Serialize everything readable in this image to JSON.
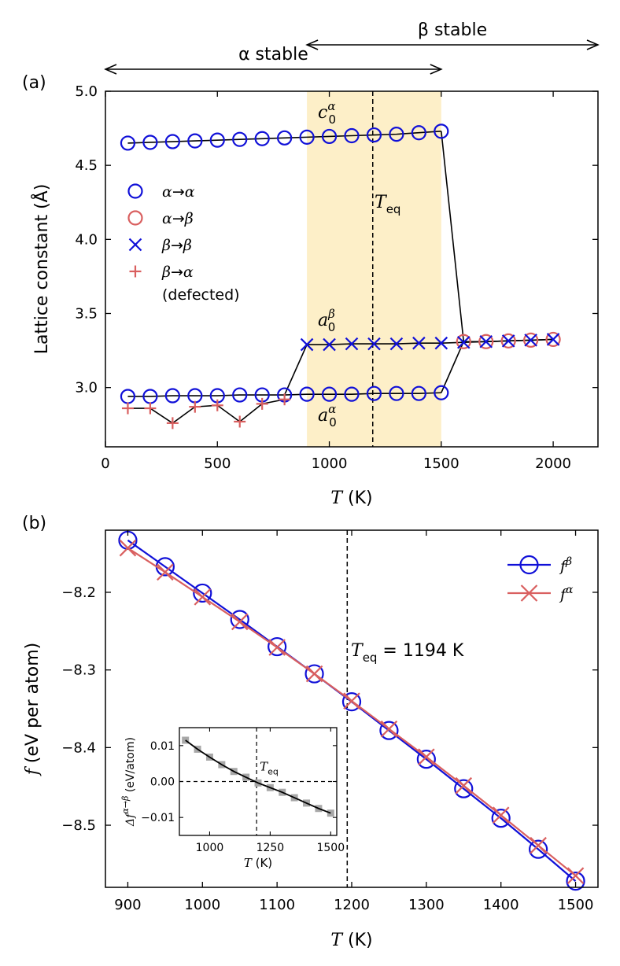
{
  "chart_data": [
    {
      "type": "line",
      "panel": "(a)",
      "xlabel_var": "T",
      "xlabel_unit": " (K)",
      "ylabel": "Lattice constant (Å)",
      "xlim": [
        0,
        2200
      ],
      "ylim": [
        2.6,
        5.0
      ],
      "xticks": [
        0,
        500,
        1000,
        1500,
        2000
      ],
      "yticks": [
        3.0,
        3.5,
        4.0,
        4.5,
        5.0
      ],
      "xtick_labels": [
        "0",
        "500",
        "1000",
        "1500",
        "2000"
      ],
      "ytick_labels": [
        "3.0",
        "3.5",
        "4.0",
        "4.5",
        "5.0"
      ],
      "stable_region": [
        900,
        1500
      ],
      "T_eq": 1194,
      "region_labels": {
        "alpha": "α stable",
        "beta": "β stable",
        "alpha_range": [
          0,
          1500
        ],
        "beta_range": [
          900,
          2200
        ]
      },
      "annotations": {
        "c0_alpha": {
          "base": "c",
          "sub": "0",
          "sup": "α"
        },
        "a0_beta": {
          "base": "a",
          "sub": "0",
          "sup": "β"
        },
        "a0_alpha": {
          "base": "a",
          "sub": "0",
          "sup": "α"
        },
        "teq": {
          "base": "T",
          "sub": "eq"
        }
      },
      "legend": [
        {
          "label": "α→α",
          "marker": "circle",
          "color": "#1010d8"
        },
        {
          "label": "α→β",
          "marker": "circle",
          "color": "#d95f5f"
        },
        {
          "label": "β→β",
          "marker": "x",
          "color": "#1010d8"
        },
        {
          "label": "β→α",
          "marker": "plus",
          "color": "#d95f5f"
        },
        {
          "label": "(defected)",
          "marker": "none",
          "color": "#000000"
        }
      ],
      "series": [
        {
          "name": "c axis α→α",
          "marker": "circle",
          "color": "#1010d8",
          "x": [
            100,
            200,
            300,
            400,
            500,
            600,
            700,
            800,
            900,
            1000,
            1100,
            1200,
            1300,
            1400,
            1500
          ],
          "y": [
            4.65,
            4.655,
            4.66,
            4.665,
            4.67,
            4.675,
            4.68,
            4.685,
            4.69,
            4.695,
            4.7,
            4.705,
            4.71,
            4.72,
            4.73
          ]
        },
        {
          "name": "a axis α→α",
          "marker": "circle",
          "color": "#1010d8",
          "x": [
            100,
            200,
            300,
            400,
            500,
            600,
            700,
            800,
            900,
            1000,
            1100,
            1200,
            1300,
            1400,
            1500
          ],
          "y": [
            2.94,
            2.94,
            2.945,
            2.945,
            2.945,
            2.95,
            2.95,
            2.95,
            2.955,
            2.955,
            2.955,
            2.96,
            2.96,
            2.96,
            2.965
          ]
        },
        {
          "name": "α→β",
          "marker": "circle",
          "color": "#d95f5f",
          "x": [
            1600,
            1700,
            1800,
            1900,
            2000
          ],
          "y": [
            3.31,
            3.31,
            3.315,
            3.32,
            3.325
          ]
        },
        {
          "name": "β→β",
          "marker": "x",
          "color": "#1010d8",
          "x": [
            900,
            1000,
            1100,
            1200,
            1300,
            1400,
            1500,
            1600,
            1700,
            1800,
            1900,
            2000
          ],
          "y": [
            3.29,
            3.29,
            3.295,
            3.295,
            3.295,
            3.3,
            3.3,
            3.305,
            3.31,
            3.315,
            3.32,
            3.325
          ]
        },
        {
          "name": "β→α (defected)",
          "marker": "plus",
          "color": "#d95f5f",
          "x": [
            100,
            200,
            300,
            400,
            500,
            600,
            700,
            800
          ],
          "y": [
            2.86,
            2.86,
            2.76,
            2.87,
            2.88,
            2.77,
            2.89,
            2.92
          ]
        }
      ],
      "connectors": [
        {
          "from": [
            1500,
            4.73
          ],
          "to": [
            1600,
            3.31
          ]
        },
        {
          "from": [
            1500,
            2.965
          ],
          "to": [
            1600,
            3.31
          ]
        },
        {
          "from": [
            800,
            2.95
          ],
          "to": [
            900,
            3.29
          ]
        },
        {
          "from": [
            800,
            2.92
          ],
          "to": [
            800,
            2.95
          ]
        }
      ]
    },
    {
      "type": "line",
      "panel": "(b)",
      "xlabel_var": "T",
      "xlabel_unit": " (K)",
      "ylabel_var": "f",
      "ylabel_unit": " (eV per atom)",
      "xlim": [
        870,
        1530
      ],
      "ylim": [
        -8.58,
        -8.12
      ],
      "xticks": [
        900,
        1000,
        1100,
        1200,
        1300,
        1400,
        1500
      ],
      "yticks": [
        -8.2,
        -8.3,
        -8.4,
        -8.5
      ],
      "xtick_labels": [
        "900",
        "1000",
        "1100",
        "1200",
        "1300",
        "1400",
        "1500"
      ],
      "ytick_labels": [
        "−8.2",
        "−8.3",
        "−8.4",
        "−8.5"
      ],
      "T_eq": 1194,
      "teq_label_var": "T",
      "teq_label_sub": "eq",
      "teq_label_value": " = 1194 K",
      "series": [
        {
          "name_base": "f",
          "name_sup": "β",
          "marker": "circle",
          "color": "#1010d8",
          "x": [
            900,
            950,
            1000,
            1050,
            1100,
            1150,
            1200,
            1250,
            1300,
            1350,
            1400,
            1450,
            1500
          ],
          "y": [
            -8.133,
            -8.167,
            -8.201,
            -8.235,
            -8.27,
            -8.305,
            -8.341,
            -8.378,
            -8.415,
            -8.453,
            -8.491,
            -8.531,
            -8.572
          ]
        },
        {
          "name_base": "f",
          "name_sup": "α",
          "marker": "x",
          "color": "#d95f5f",
          "x": [
            900,
            950,
            1000,
            1050,
            1100,
            1150,
            1200,
            1250,
            1300,
            1350,
            1400,
            1450,
            1500
          ],
          "y": [
            -8.143,
            -8.174,
            -8.206,
            -8.238,
            -8.271,
            -8.305,
            -8.34,
            -8.376,
            -8.412,
            -8.449,
            -8.487,
            -8.526,
            -8.565
          ]
        }
      ],
      "inset": {
        "xlabel_var": "T",
        "xlabel_unit": " (K)",
        "ylabel": "Δf α→β (eV/atom)",
        "ylabel_base": "Δf",
        "ylabel_sup": "α→β",
        "ylabel_unit": " (eV/atom)",
        "xlim": [
          875,
          1525
        ],
        "ylim": [
          -0.015,
          0.015
        ],
        "xticks": [
          1000,
          1250,
          1500
        ],
        "yticks": [
          0.01,
          0.0,
          -0.01
        ],
        "xtick_labels": [
          "1000",
          "1250",
          "1500"
        ],
        "ytick_labels": [
          "0.01",
          "0.00",
          "−0.01"
        ],
        "T_eq": 1194,
        "teq_label_var": "T",
        "teq_label_sub": "eq",
        "x": [
          900,
          950,
          1000,
          1050,
          1100,
          1150,
          1200,
          1250,
          1300,
          1350,
          1400,
          1450,
          1500
        ],
        "y": [
          0.0115,
          0.009,
          0.0068,
          0.0047,
          0.0028,
          0.0012,
          -0.0004,
          -0.0017,
          -0.003,
          -0.0045,
          -0.006,
          -0.0075,
          -0.0088
        ],
        "fit_color": "#000000",
        "marker_color": "#a8a8a8"
      }
    }
  ]
}
